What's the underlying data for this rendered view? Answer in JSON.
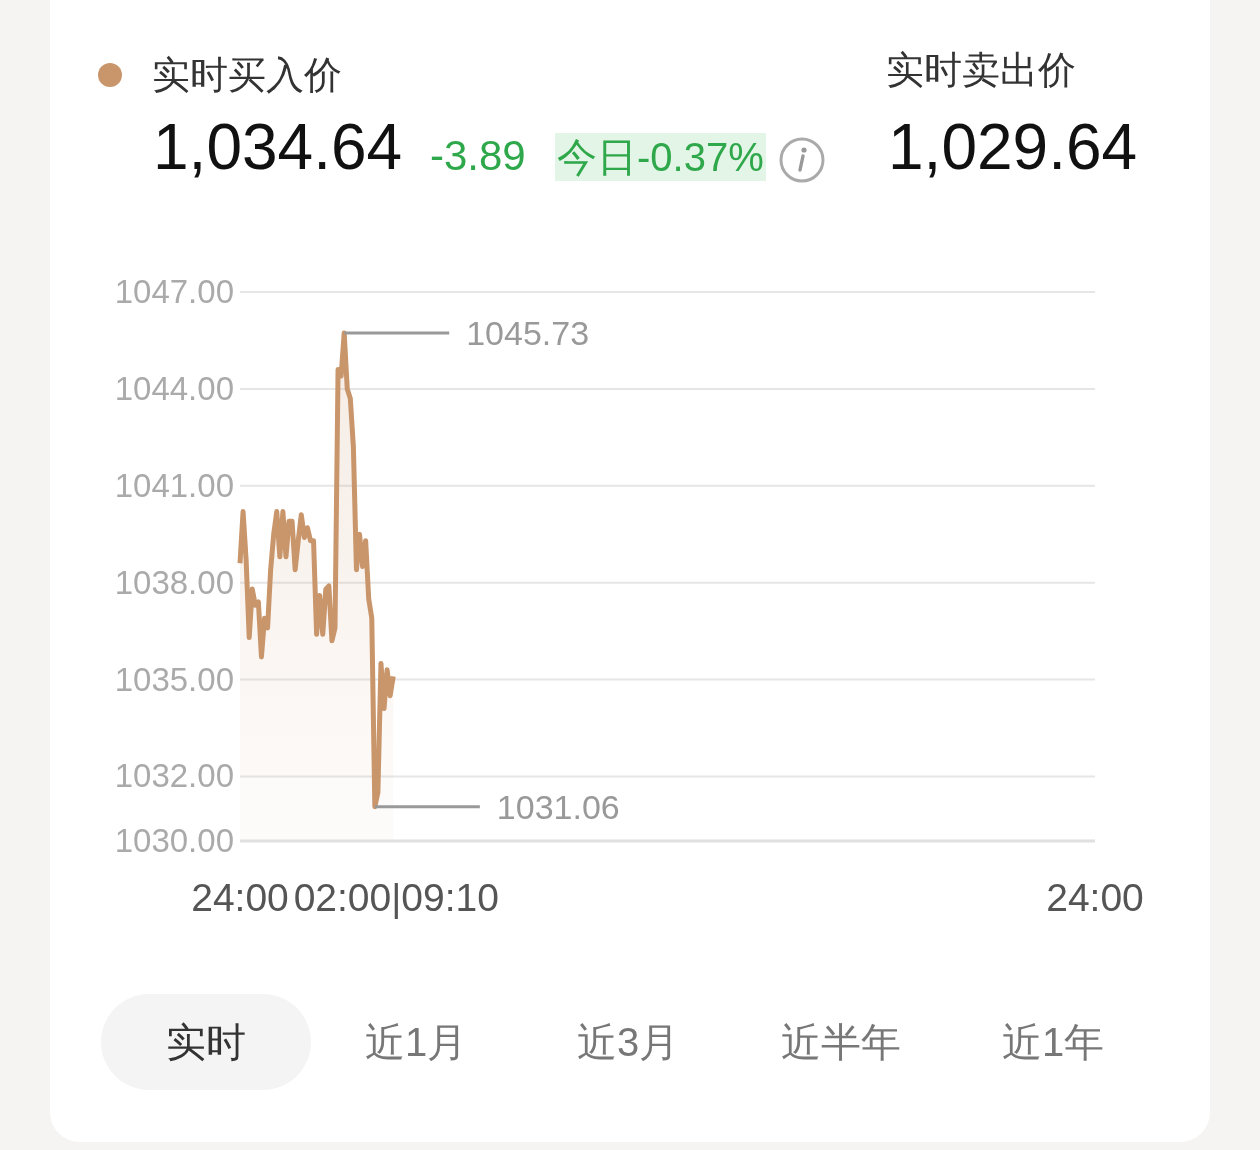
{
  "chart_data": {
    "type": "area",
    "categories": [
      "24:00",
      null,
      null,
      null,
      null,
      null,
      null,
      null,
      null,
      null,
      null,
      null,
      null,
      null,
      null,
      null,
      null,
      null,
      null,
      null,
      null,
      null,
      null,
      null,
      null,
      null,
      null,
      null,
      null,
      null,
      null,
      null,
      null,
      null,
      null,
      null,
      null,
      null,
      null,
      null,
      null,
      null,
      null,
      null,
      null,
      null,
      null,
      null,
      null,
      null,
      null,
      "02:00|09:10",
      null,
      null,
      null,
      null,
      null,
      null,
      null,
      null,
      null,
      null,
      null,
      null,
      null,
      null,
      null,
      null,
      null,
      null,
      null,
      null,
      null,
      null,
      null,
      null,
      null,
      null,
      null,
      null,
      null,
      null,
      null,
      null,
      null,
      null,
      null,
      null,
      null,
      null,
      null,
      null,
      null,
      null,
      null,
      null,
      null,
      null,
      null,
      null,
      null,
      null,
      null,
      null,
      null,
      null,
      null,
      null,
      null,
      null,
      null,
      null,
      null,
      null,
      null,
      null,
      null,
      null,
      null,
      null,
      null,
      null,
      null,
      null,
      null,
      null,
      null,
      null,
      null,
      null,
      null,
      null,
      null,
      null,
      null,
      null,
      null,
      null,
      null,
      null,
      null,
      null,
      null,
      null,
      null,
      null,
      null,
      null,
      null,
      null,
      null,
      null,
      null,
      null,
      null,
      null,
      null,
      null,
      null,
      null,
      null,
      null,
      null,
      null,
      null,
      null,
      null,
      null,
      null,
      null,
      null,
      null,
      null,
      null,
      null,
      null,
      null,
      null,
      null,
      null,
      null,
      null,
      null,
      null,
      null,
      null,
      null,
      null,
      null,
      null,
      null,
      null,
      null,
      null,
      null,
      null,
      null,
      null,
      null,
      null,
      null,
      null,
      null,
      null,
      null,
      null,
      null,
      null,
      null,
      null,
      null,
      null,
      null,
      null,
      null,
      null,
      null,
      null,
      null,
      null,
      null,
      null,
      null,
      null,
      null,
      null,
      null,
      null,
      null,
      null,
      null,
      null,
      null,
      null,
      null,
      null,
      null,
      null,
      null,
      null,
      null,
      null,
      null,
      null,
      null,
      null,
      null,
      null,
      null,
      null,
      null,
      null,
      null,
      null,
      null,
      null,
      null,
      null,
      null,
      null,
      null,
      null,
      null,
      null,
      null,
      null,
      null,
      null,
      null,
      null,
      null,
      null,
      null,
      null,
      null,
      null,
      null,
      null,
      null,
      "24:00"
    ],
    "series": [
      {
        "name": "实时买入价",
        "color": "#c9956b",
        "values": [
          1038.6,
          1040.2,
          1038.7,
          1036.3,
          1037.8,
          1037.3,
          1037.4,
          1035.7,
          1036.9,
          1036.6,
          1038.4,
          1039.5,
          1040.2,
          1038.8,
          1040.2,
          1038.8,
          1039.9,
          1039.9,
          1038.4,
          1039.3,
          1040.1,
          1039.4,
          1039.7,
          1039.3,
          1039.3,
          1036.4,
          1037.6,
          1036.4,
          1037.8,
          1037.9,
          1036.2,
          1036.6,
          1044.6,
          1044.4,
          1045.73,
          1044.0,
          1043.7,
          1042.2,
          1038.4,
          1039.5,
          1038.5,
          1039.3,
          1037.5,
          1036.9,
          1031.06,
          1031.5,
          1035.5,
          1034.1,
          1035.3,
          1034.5,
          1035.1,
          null,
          null,
          null,
          null,
          null,
          null,
          null,
          null,
          null,
          null,
          null,
          null,
          null,
          null,
          null,
          null,
          null,
          null,
          null,
          null,
          null,
          null,
          null,
          null,
          null,
          null,
          null,
          null,
          null,
          null,
          null,
          null,
          null,
          null,
          null,
          null,
          null,
          null,
          null,
          null,
          null,
          null,
          null,
          null,
          null,
          null,
          null,
          null,
          null,
          null,
          null,
          null,
          null,
          null,
          null,
          null,
          null,
          null,
          null,
          null,
          null,
          null,
          null,
          null,
          null,
          null,
          null,
          null,
          null,
          null,
          null,
          null,
          null,
          null,
          null,
          null,
          null,
          null,
          null,
          null,
          null,
          null,
          null,
          null,
          null,
          null,
          null,
          null,
          null,
          null,
          null,
          null,
          null,
          null,
          null,
          null,
          null,
          null,
          null,
          null,
          null,
          null,
          null,
          null,
          null,
          null,
          null,
          null,
          null,
          null,
          null,
          null,
          null,
          null,
          null,
          null,
          null,
          null,
          null,
          null,
          null,
          null,
          null,
          null,
          null,
          null,
          null,
          null,
          null,
          null,
          null,
          null,
          null,
          null,
          null,
          null,
          null,
          null,
          null,
          null,
          null,
          null,
          null,
          null,
          null,
          null,
          null,
          null,
          null,
          null,
          null,
          null,
          null,
          null,
          null,
          null,
          null,
          null,
          null,
          null,
          null,
          null,
          null,
          null,
          null,
          null,
          null,
          null,
          null,
          null,
          null,
          null,
          null,
          null,
          null,
          null,
          null,
          null,
          null,
          null,
          null,
          null,
          null,
          null,
          null,
          null,
          null,
          null,
          null,
          null,
          null,
          null,
          null,
          null,
          null,
          null,
          null,
          null,
          null,
          null,
          null,
          null,
          null,
          null,
          null,
          null,
          null,
          null,
          null,
          null,
          null,
          null,
          null,
          null,
          null,
          null,
          null,
          null,
          null,
          null,
          null,
          null,
          null,
          null,
          null,
          null,
          null,
          null,
          null
        ]
      }
    ],
    "ylim": [
      1030,
      1047
    ],
    "yticks": [
      {
        "value": 1030,
        "label": "1030.00"
      },
      {
        "value": 1032,
        "label": "1032.00"
      },
      {
        "value": 1035,
        "label": "1035.00"
      },
      {
        "value": 1038,
        "label": "1038.00"
      },
      {
        "value": 1041,
        "label": "1041.00"
      },
      {
        "value": 1044,
        "label": "1044.00"
      },
      {
        "value": 1047,
        "label": "1047.00"
      }
    ],
    "grid": "y",
    "legend": "top left",
    "annotations": [
      "1,034.64",
      "-3.89",
      "今日-0.37%",
      "实时卖出价",
      "1,029.64",
      "实时",
      "近1月",
      "近3月",
      "近半年",
      "近1年",
      "1045.73",
      "1031.06"
    ]
  }
}
